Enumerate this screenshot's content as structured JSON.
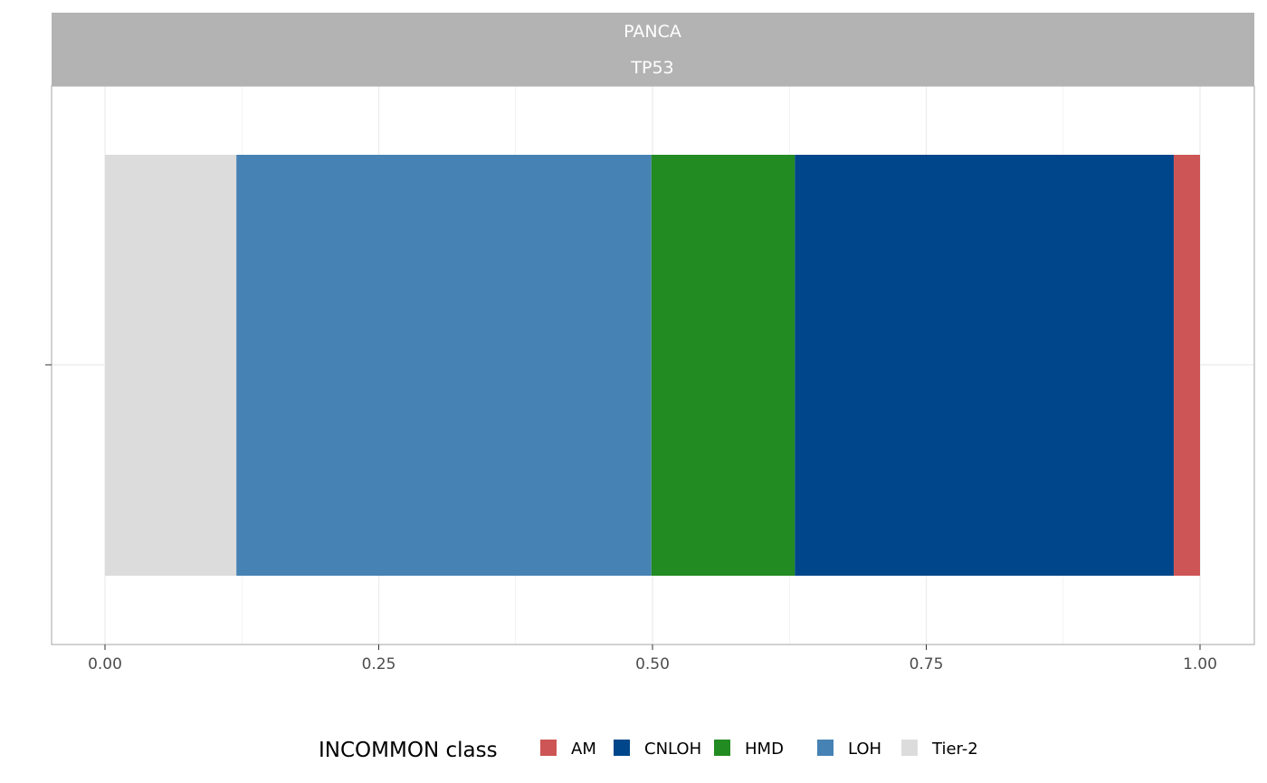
{
  "chart_data": {
    "type": "bar",
    "orientation": "horizontal",
    "stacked": true,
    "facet_labels": [
      "PANCA",
      "TP53"
    ],
    "xlim": [
      0,
      1
    ],
    "x_ticks": [
      "0.00",
      "0.25",
      "0.50",
      "0.75",
      "1.00"
    ],
    "grid": true,
    "legend": {
      "title": "INCOMMON class",
      "placement": "bottom",
      "entries": [
        "AM",
        "CNLOH",
        "HMD",
        "LOH",
        "Tier-2"
      ]
    },
    "series": [
      {
        "name": "Tier-2",
        "values": [
          0.12
        ],
        "color": "#DCDCDC"
      },
      {
        "name": "LOH",
        "values": [
          0.379
        ],
        "color": "#4682B4"
      },
      {
        "name": "HMD",
        "values": [
          0.131
        ],
        "color": "#228B22"
      },
      {
        "name": "CNLOH",
        "values": [
          0.346
        ],
        "color": "#00468B"
      },
      {
        "name": "AM",
        "values": [
          0.024
        ],
        "color": "#CD5555"
      }
    ]
  }
}
